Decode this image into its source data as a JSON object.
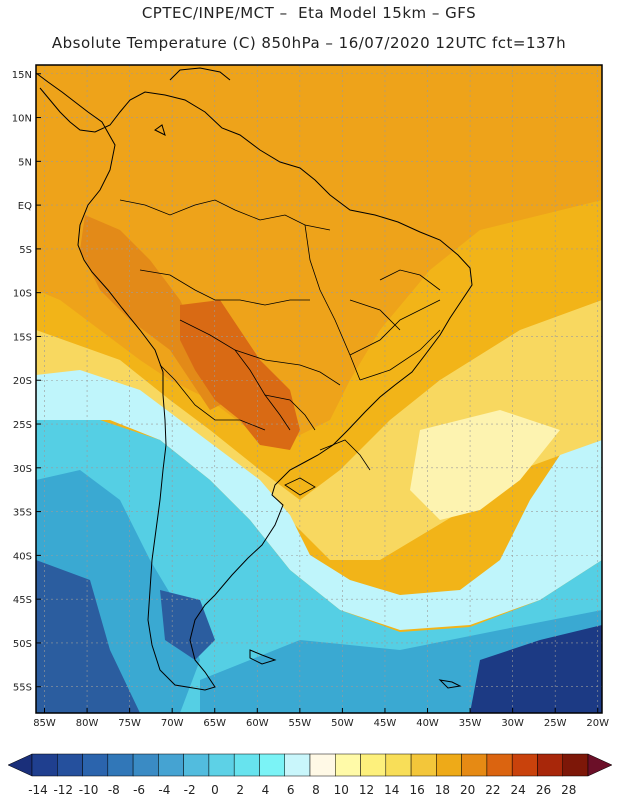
{
  "header": {
    "line1": "CPTEC/INPE/MCT –  Eta Model 15km – GFS",
    "line2": "Absolute Temperature (C) 850hPa – 16/07/2020 12UTC fct=137h"
  },
  "map": {
    "lat_labels": [
      "15N",
      "10N",
      "5N",
      "EQ",
      "5S",
      "10S",
      "15S",
      "20S",
      "25S",
      "30S",
      "35S",
      "40S",
      "45S",
      "50S",
      "55S"
    ],
    "lon_labels": [
      "85W",
      "80W",
      "75W",
      "70W",
      "65W",
      "60W",
      "55W",
      "50W",
      "45W",
      "40W",
      "35W",
      "30W",
      "25W",
      "20W"
    ],
    "region_colors": {
      "ocean_north": "#f2b418",
      "continent_north": "#eea31a",
      "andes_warm": "#e38a18",
      "hot_core": "#d96a14",
      "subtropical": "#f8d860",
      "transition": "#fdf3b0",
      "cold_edge": "#bff5fb",
      "cold": "#55cfe4",
      "colder": "#3aa9d2",
      "coldest": "#2b5d9f",
      "deep_cold": "#1c3a84"
    }
  },
  "colorbar": {
    "labels": [
      "-14",
      "-12",
      "-10",
      "-8",
      "-6",
      "-4",
      "-2",
      "0",
      "2",
      "4",
      "6",
      "8",
      "10",
      "12",
      "14",
      "16",
      "18",
      "20",
      "22",
      "24",
      "26",
      "28"
    ],
    "colors": [
      "#1f3f8f",
      "#25509d",
      "#2b64ad",
      "#3177b8",
      "#3a8bc4",
      "#45a3d2",
      "#52bcde",
      "#5dd1e6",
      "#67e3ee",
      "#7bf3f6",
      "#c9f6fb",
      "#fff9e6",
      "#fffaa8",
      "#fdf07c",
      "#f8de58",
      "#f3c63a",
      "#eeaa18",
      "#e68a14",
      "#db6410",
      "#c9420c",
      "#a8270a",
      "#7d1708"
    ],
    "left_arrow_color": "#1a2f7a",
    "right_arrow_color": "#6b0f28"
  }
}
